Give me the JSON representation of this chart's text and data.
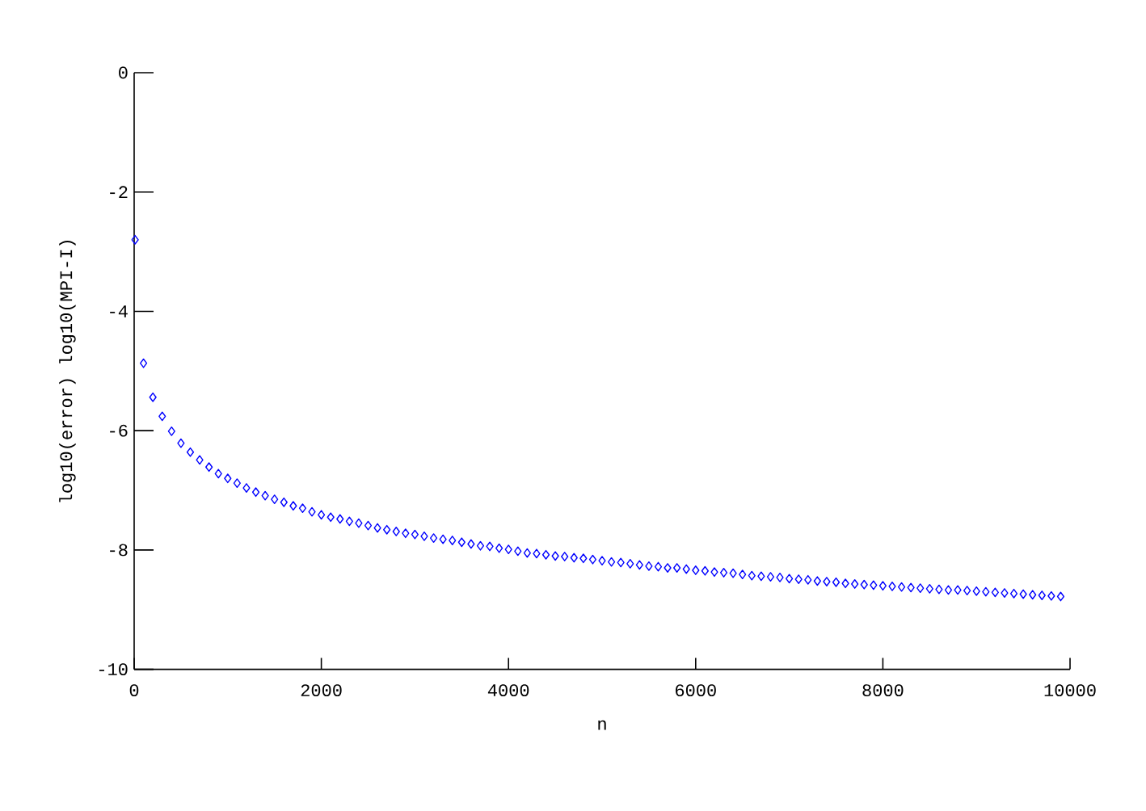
{
  "chart_data": {
    "type": "scatter",
    "xlabel": "n",
    "ylabel": "log10(error) log10(MPI-I)",
    "x": [
      10,
      100,
      200,
      300,
      400,
      500,
      600,
      700,
      800,
      900,
      1000,
      1100,
      1200,
      1300,
      1400,
      1500,
      1600,
      1700,
      1800,
      1900,
      2000,
      2100,
      2200,
      2300,
      2400,
      2500,
      2600,
      2700,
      2800,
      2900,
      3000,
      3100,
      3200,
      3300,
      3400,
      3500,
      3600,
      3700,
      3800,
      3900,
      4000,
      4100,
      4200,
      4300,
      4400,
      4500,
      4600,
      4700,
      4800,
      4900,
      5000,
      5100,
      5200,
      5300,
      5400,
      5500,
      5600,
      5700,
      5800,
      5900,
      6000,
      6100,
      6200,
      6300,
      6400,
      6500,
      6600,
      6700,
      6800,
      6900,
      7000,
      7100,
      7200,
      7300,
      7400,
      7500,
      7600,
      7700,
      7800,
      7900,
      8000,
      8100,
      8200,
      8300,
      8400,
      8500,
      8600,
      8700,
      8800,
      8900,
      9000,
      9100,
      9200,
      9300,
      9400,
      9500,
      9600,
      9700,
      9800,
      9900
    ],
    "values": [
      -2.8,
      -4.87,
      -5.44,
      -5.76,
      -6.01,
      -6.21,
      -6.36,
      -6.49,
      -6.61,
      -6.72,
      -6.8,
      -6.88,
      -6.96,
      -7.03,
      -7.09,
      -7.15,
      -7.2,
      -7.26,
      -7.3,
      -7.36,
      -7.41,
      -7.45,
      -7.48,
      -7.52,
      -7.55,
      -7.59,
      -7.63,
      -7.66,
      -7.69,
      -7.72,
      -7.74,
      -7.77,
      -7.8,
      -7.82,
      -7.84,
      -7.87,
      -7.9,
      -7.93,
      -7.94,
      -7.97,
      -7.99,
      -8.02,
      -8.05,
      -8.06,
      -8.08,
      -8.1,
      -8.11,
      -8.13,
      -8.14,
      -8.16,
      -8.18,
      -8.2,
      -8.21,
      -8.23,
      -8.25,
      -8.27,
      -8.28,
      -8.3,
      -8.3,
      -8.32,
      -8.34,
      -8.35,
      -8.37,
      -8.38,
      -8.39,
      -8.41,
      -8.43,
      -8.44,
      -8.45,
      -8.46,
      -8.48,
      -8.49,
      -8.5,
      -8.52,
      -8.53,
      -8.54,
      -8.56,
      -8.57,
      -8.58,
      -8.59,
      -8.6,
      -8.61,
      -8.62,
      -8.63,
      -8.64,
      -8.65,
      -8.66,
      -8.67,
      -8.67,
      -8.68,
      -8.69,
      -8.7,
      -8.71,
      -8.72,
      -8.73,
      -8.74,
      -8.75,
      -8.76,
      -8.77,
      -8.78
    ],
    "color": "#0000ff",
    "marker": "diamond",
    "xlim": [
      0,
      10000
    ],
    "ylim": [
      -10,
      0
    ],
    "xticks": [
      0,
      2000,
      4000,
      6000,
      8000,
      10000
    ],
    "yticks": [
      -10,
      -8,
      -6,
      -4,
      -2,
      0
    ]
  }
}
